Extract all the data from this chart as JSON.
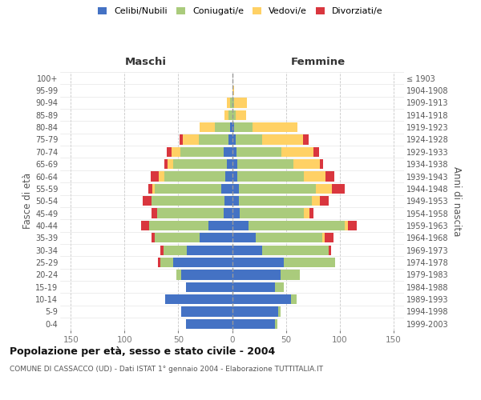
{
  "age_groups": [
    "0-4",
    "5-9",
    "10-14",
    "15-19",
    "20-24",
    "25-29",
    "30-34",
    "35-39",
    "40-44",
    "45-49",
    "50-54",
    "55-59",
    "60-64",
    "65-69",
    "70-74",
    "75-79",
    "80-84",
    "85-89",
    "90-94",
    "95-99",
    "100+"
  ],
  "birth_years": [
    "1999-2003",
    "1994-1998",
    "1989-1993",
    "1984-1988",
    "1979-1983",
    "1974-1978",
    "1969-1973",
    "1964-1968",
    "1959-1963",
    "1954-1958",
    "1949-1953",
    "1944-1948",
    "1939-1943",
    "1934-1938",
    "1929-1933",
    "1924-1928",
    "1919-1923",
    "1914-1918",
    "1909-1913",
    "1904-1908",
    "≤ 1903"
  ],
  "males_celibi": [
    43,
    47,
    62,
    43,
    47,
    55,
    42,
    30,
    22,
    8,
    7,
    10,
    6,
    5,
    8,
    3,
    2,
    0,
    0,
    0,
    0
  ],
  "males_coniugati": [
    0,
    0,
    0,
    0,
    5,
    12,
    22,
    42,
    55,
    62,
    68,
    62,
    57,
    50,
    40,
    28,
    14,
    3,
    2,
    0,
    0
  ],
  "males_vedovi": [
    0,
    0,
    0,
    0,
    0,
    0,
    0,
    0,
    0,
    0,
    0,
    2,
    5,
    5,
    8,
    15,
    14,
    4,
    3,
    0,
    0
  ],
  "males_divorziati": [
    0,
    0,
    0,
    0,
    0,
    2,
    3,
    3,
    8,
    5,
    8,
    4,
    8,
    3,
    5,
    3,
    0,
    0,
    0,
    0,
    0
  ],
  "females_nubili": [
    40,
    43,
    55,
    40,
    45,
    48,
    28,
    22,
    15,
    7,
    6,
    6,
    5,
    5,
    4,
    3,
    2,
    0,
    0,
    0,
    0
  ],
  "females_coniugate": [
    2,
    2,
    5,
    8,
    18,
    48,
    62,
    62,
    90,
    60,
    68,
    72,
    62,
    52,
    42,
    25,
    17,
    3,
    2,
    0,
    0
  ],
  "females_vedove": [
    0,
    0,
    0,
    0,
    0,
    0,
    0,
    2,
    3,
    5,
    8,
    15,
    20,
    25,
    30,
    38,
    42,
    10,
    12,
    2,
    0
  ],
  "females_divorziate": [
    0,
    0,
    0,
    0,
    0,
    0,
    2,
    8,
    8,
    4,
    8,
    12,
    8,
    3,
    5,
    5,
    0,
    0,
    0,
    0,
    0
  ],
  "color_celibi": "#4472C4",
  "color_coniugati": "#AACB7C",
  "color_vedovi": "#FFD165",
  "color_divorziati": "#D9363E",
  "xlim": 160,
  "xticks": [
    -150,
    -100,
    -50,
    0,
    50,
    100,
    150
  ],
  "xticklabels": [
    "150",
    "100",
    "50",
    "0",
    "50",
    "100",
    "150"
  ],
  "title": "Popolazione per età, sesso e stato civile - 2004",
  "subtitle": "COMUNE DI CASSACCO (UD) - Dati ISTAT 1° gennaio 2004 - Elaborazione TUTTITALIA.IT",
  "ylabel_left": "Fasce di età",
  "ylabel_right": "Anni di nascita",
  "header_left": "Maschi",
  "header_right": "Femmine",
  "legend_labels": [
    "Celibi/Nubili",
    "Coniugati/e",
    "Vedovi/e",
    "Divorziati/e"
  ],
  "bg_color": "#ffffff",
  "grid_color": "#c8c8c8"
}
